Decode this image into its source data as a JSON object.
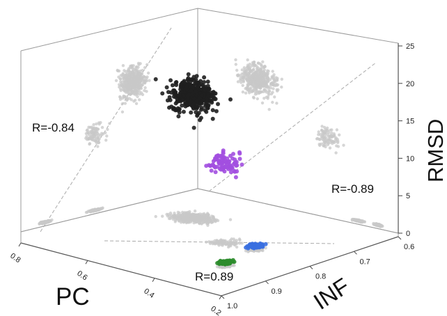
{
  "chart_data": {
    "type": "scatter",
    "title": "",
    "axes": {
      "x": {
        "label": "PC",
        "ticks": [
          "0.8",
          "0.6",
          "0.4",
          "0.2"
        ]
      },
      "y": {
        "label": "INF",
        "ticks": [
          "1.0",
          "0.9",
          "0.8",
          "0.7",
          "0.6"
        ]
      },
      "z": {
        "label": "RMSD",
        "ticks": [
          "0",
          "5",
          "10",
          "15",
          "20",
          "25"
        ]
      }
    },
    "xlim": [
      0.8,
      0.2
    ],
    "ylim": [
      1.0,
      0.6
    ],
    "zlim": [
      0,
      25
    ],
    "grid": false,
    "legend": "none",
    "annotations": [
      {
        "text": "R=-0.84",
        "panel": "PC-RMSD"
      },
      {
        "text": "R=-0.89",
        "panel": "INF-RMSD"
      },
      {
        "text": "R=0.89",
        "panel": "PC-INF"
      }
    ],
    "series": [
      {
        "color": "#1f1f1f",
        "cluster_center": {
          "pc": 0.42,
          "inf": 0.72,
          "rmsd": 17
        },
        "approx_count": 450
      },
      {
        "color": "#a24fe0",
        "cluster_center": {
          "pc": 0.55,
          "inf": 0.86,
          "rmsd": 11
        },
        "approx_count": 90
      },
      {
        "color": "#3a6fe0",
        "cluster_center": {
          "pc": 0.55,
          "inf": 0.92,
          "rmsd": 0.5
        },
        "approx_count": 110
      },
      {
        "color": "#2c8c2c",
        "cluster_center": {
          "pc": 0.72,
          "inf": 0.96,
          "rmsd": 0.5
        },
        "approx_count": 120
      },
      {
        "color": "#c8c8c8",
        "role": "projections"
      }
    ]
  }
}
